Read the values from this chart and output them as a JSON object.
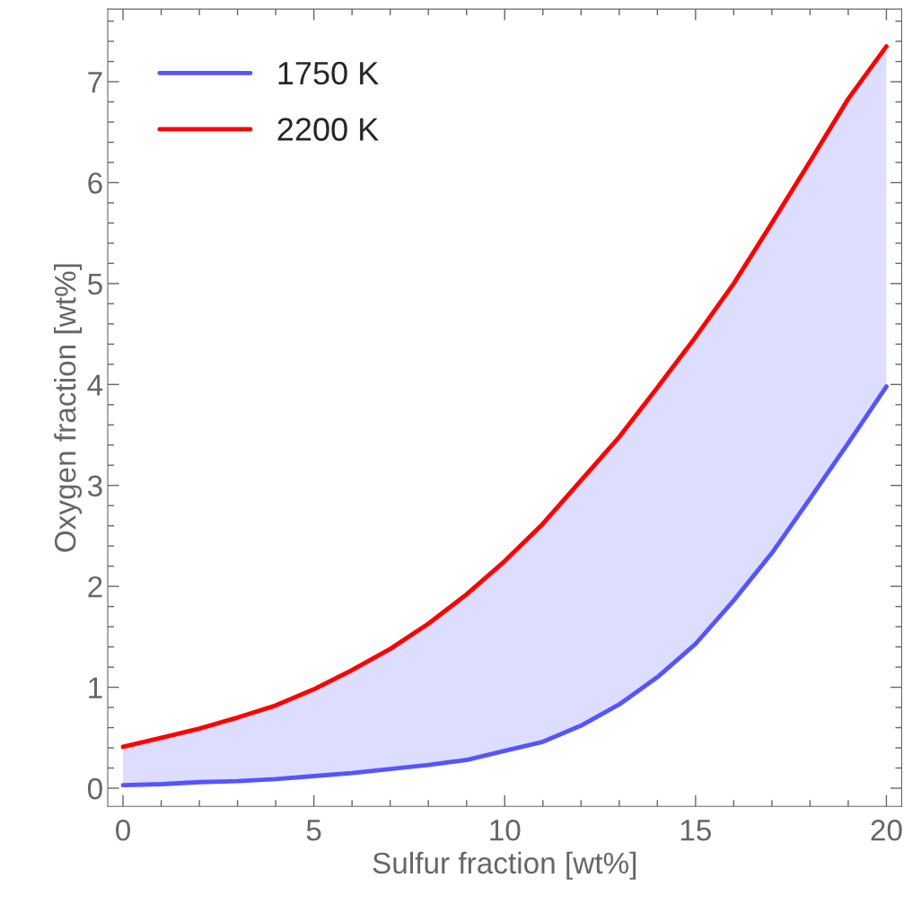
{
  "chart_data": {
    "type": "line",
    "xlabel": "Sulfur fraction [wt%]",
    "ylabel": "Oxygen fraction [wt%]",
    "x": [
      0,
      1,
      2,
      3,
      4,
      5,
      6,
      7,
      8,
      9,
      10,
      11,
      12,
      13,
      14,
      15,
      16,
      17,
      18,
      19,
      20
    ],
    "series": [
      {
        "name": "1750 K",
        "color": "#5555ff",
        "values": [
          0.03,
          0.04,
          0.06,
          0.07,
          0.09,
          0.12,
          0.15,
          0.19,
          0.23,
          0.28,
          0.37,
          0.46,
          0.62,
          0.83,
          1.1,
          1.43,
          1.86,
          2.33,
          2.87,
          3.42,
          3.98
        ],
        "lower": [
          0.03,
          0.04,
          0.06,
          0.07,
          0.09,
          0.12,
          0.15,
          0.19,
          0.23,
          0.28,
          0.37,
          0.46,
          0.62,
          0.83,
          1.1,
          1.43,
          1.86,
          2.33,
          2.87,
          3.42,
          3.98
        ],
        "upper": [
          0.41,
          0.5,
          0.59,
          0.7,
          0.82,
          0.98,
          1.17,
          1.38,
          1.63,
          1.92,
          2.25,
          2.62,
          3.05,
          3.48,
          3.97,
          4.47,
          5.0,
          5.6,
          6.21,
          6.83,
          7.35
        ]
      },
      {
        "name": "2200 K",
        "color": "#ff0000",
        "values": [
          0.41,
          0.5,
          0.59,
          0.7,
          0.82,
          0.98,
          1.17,
          1.38,
          1.63,
          1.92,
          2.25,
          2.62,
          3.05,
          3.48,
          3.97,
          4.47,
          5.0,
          5.6,
          6.21,
          6.83,
          7.35
        ]
      }
    ],
    "xlim": [
      -0.4,
      20.4
    ],
    "xticks": [
      0,
      5,
      10,
      15,
      20
    ],
    "ylim": [
      -0.18,
      7.72
    ],
    "yticks": [
      0,
      1,
      2,
      3,
      4,
      5,
      6,
      7
    ],
    "grid": false,
    "legend": "top left",
    "marker": "none",
    "line_style": "solid"
  }
}
